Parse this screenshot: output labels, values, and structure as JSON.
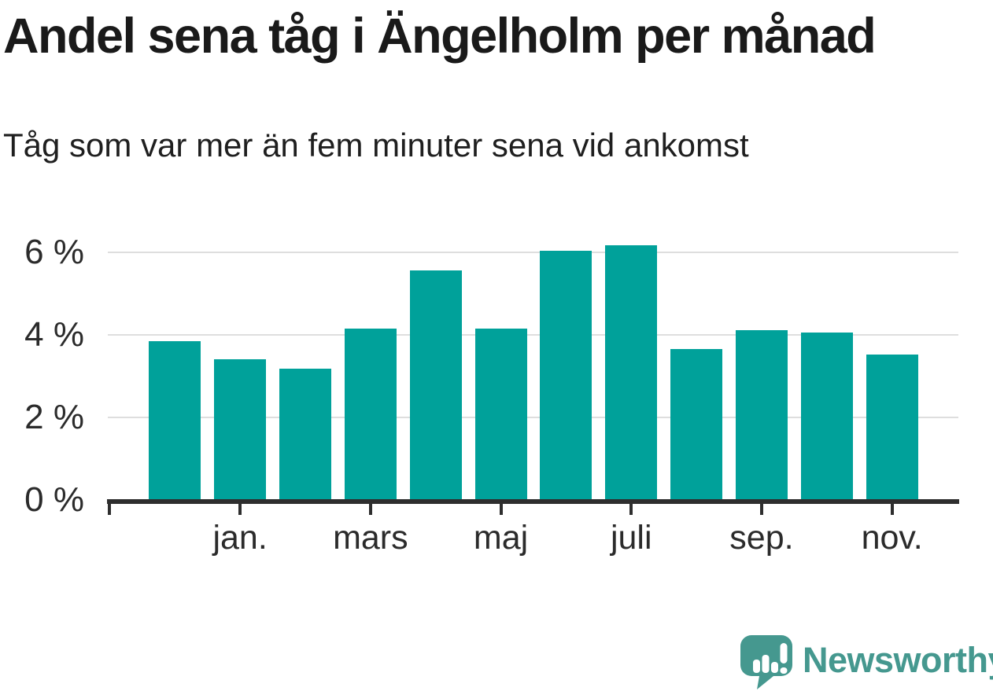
{
  "header": {
    "title": "Andel sena tåg i Ängelholm per månad",
    "subtitle": "Tåg som var mer än fem minuter sena vid ankomst"
  },
  "footer": {
    "brand": "Newsworthy"
  },
  "colors": {
    "bar": "#00a19a",
    "gridline": "#dedede",
    "axis": "#2e2e2e",
    "tick": "#2e2e2e",
    "title_text": "#1a1a1a",
    "axis_text": "#2b2b2b",
    "logo": "#45988f",
    "background": "#ffffff"
  },
  "chart_data": {
    "type": "bar",
    "title": "Andel sena tåg i Ängelholm per månad",
    "subtitle": "Tåg som var mer än fem minuter sena vid ankomst",
    "unit": "%",
    "n_bars": 12,
    "values": [
      3.85,
      3.4,
      3.17,
      4.15,
      5.55,
      4.15,
      6.03,
      6.17,
      3.66,
      4.1,
      4.05,
      3.51
    ],
    "ylim": [
      0,
      6.5
    ],
    "grid": "horizontal",
    "gridline_values": [
      2,
      4,
      6
    ],
    "y_ticks": [
      {
        "value": 6,
        "label": "6 %"
      },
      {
        "value": 4,
        "label": "4 %"
      },
      {
        "value": 2,
        "label": "2 %"
      },
      {
        "value": 0,
        "label": "0 %"
      }
    ],
    "x_ticks": [
      {
        "bar_index": 1,
        "label": "jan."
      },
      {
        "bar_index": 3,
        "label": "mars"
      },
      {
        "bar_index": 5,
        "label": "maj"
      },
      {
        "bar_index": 7,
        "label": "juli"
      },
      {
        "bar_index": 9,
        "label": "sep."
      },
      {
        "bar_index": 11,
        "label": "nov."
      }
    ],
    "edge_tick_at_plot_left": true,
    "legend": "none"
  }
}
